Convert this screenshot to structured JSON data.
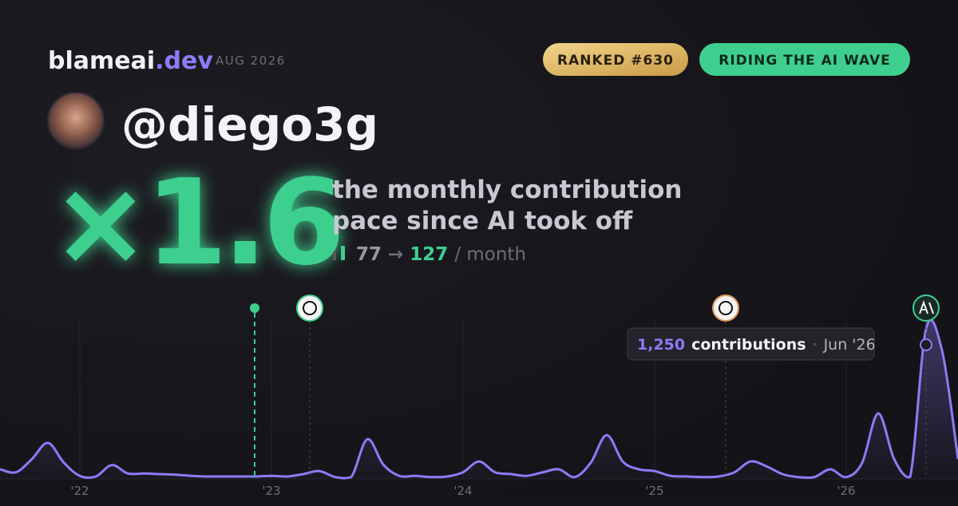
{
  "header": {
    "brand": "blameai",
    "brand_tld": ".dev",
    "period": "AUG 2026"
  },
  "badges": [
    "RANKED #630",
    "RIDING THE AI WAVE"
  ],
  "user": {
    "handle": "@diego3g"
  },
  "headline": {
    "multiplier": "×1.6",
    "line1": "the monthly contribution",
    "line2": "pace since AI took off"
  },
  "stats": {
    "before": 77,
    "arrow": "→",
    "after": 127,
    "per": "/ month"
  },
  "tooltip": {
    "value_label": "1,250",
    "unit": "contributions",
    "separator": "·",
    "date": "Jun '26"
  },
  "chart_data": {
    "type": "area",
    "color": "#8b7cf6",
    "ylim": [
      0,
      1250
    ],
    "categories": [
      null,
      null,
      null,
      null,
      null,
      "'22",
      null,
      null,
      null,
      null,
      null,
      null,
      null,
      null,
      null,
      null,
      null,
      "'23",
      null,
      null,
      null,
      null,
      null,
      null,
      null,
      null,
      null,
      null,
      null,
      "'24",
      null,
      null,
      null,
      null,
      null,
      null,
      null,
      null,
      null,
      null,
      null,
      "'25",
      null,
      null,
      null,
      null,
      null,
      null,
      null,
      null,
      null,
      null,
      null,
      "'26",
      null,
      null,
      null,
      null,
      null,
      null,
      null
    ],
    "values": [
      80,
      55,
      165,
      300,
      135,
      25,
      20,
      115,
      45,
      45,
      40,
      35,
      25,
      20,
      20,
      20,
      20,
      25,
      20,
      40,
      65,
      15,
      15,
      330,
      120,
      25,
      25,
      15,
      20,
      55,
      145,
      55,
      40,
      25,
      55,
      80,
      15,
      135,
      365,
      145,
      80,
      65,
      25,
      20,
      15,
      20,
      55,
      145,
      105,
      40,
      15,
      15,
      80,
      15,
      135,
      545,
      165,
      15,
      1250,
      1070,
      165
    ]
  }
}
